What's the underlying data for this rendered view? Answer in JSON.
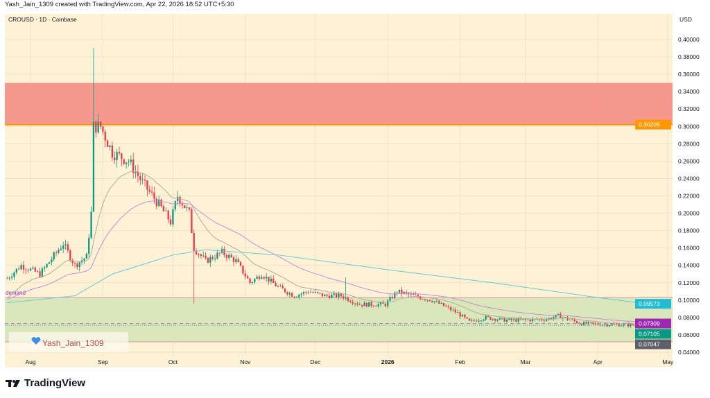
{
  "header": {
    "caption": "Yash_Jain_1309 created with TradingView.com, Apr 22, 2026 18:52 UTC+5:30",
    "symbol": "CROUSD · 1D · Coinbase",
    "currency": "USD"
  },
  "watermark": {
    "text": "Yash_Jain_1309",
    "icon": "heart-icon"
  },
  "logo": {
    "text": "TradingView"
  },
  "chart_data": {
    "type": "candlestick",
    "title": "CROUSD · 1D · Coinbase",
    "ylim": [
      0.04,
      0.4
    ],
    "yticks": [
      "0.04000",
      "0.06000",
      "0.08000",
      "0.10000",
      "0.12000",
      "0.14000",
      "0.16000",
      "0.18000",
      "0.20000",
      "0.22000",
      "0.24000",
      "0.26000",
      "0.28000",
      "0.30000",
      "0.32000",
      "0.34000",
      "0.36000",
      "0.38000",
      "0.40000"
    ],
    "xticks": [
      {
        "label": "Aug",
        "date": "2025-08-01"
      },
      {
        "label": "Sep",
        "date": "2025-09-01"
      },
      {
        "label": "Oct",
        "date": "2025-10-01"
      },
      {
        "label": "Nov",
        "date": "2025-11-01"
      },
      {
        "label": "Dec",
        "date": "2025-12-01"
      },
      {
        "label": "2026",
        "date": "2026-01-01"
      },
      {
        "label": "Feb",
        "date": "2026-02-01"
      },
      {
        "label": "Mar",
        "date": "2026-03-01"
      },
      {
        "label": "Apr",
        "date": "2026-04-01"
      },
      {
        "label": "May",
        "date": "2026-05-01"
      }
    ],
    "xlim": [
      "2025-07-21",
      "2026-05-03"
    ],
    "close_path": [
      [
        "2025-07-22",
        0.125
      ],
      [
        "2025-07-28",
        0.14
      ],
      [
        "2025-08-05",
        0.13
      ],
      [
        "2025-08-15",
        0.165
      ],
      [
        "2025-08-20",
        0.14
      ],
      [
        "2025-08-25",
        0.15
      ],
      [
        "2025-08-27",
        0.2
      ],
      [
        "2025-08-28",
        0.3
      ],
      [
        "2025-08-31",
        0.3
      ],
      [
        "2025-09-05",
        0.27
      ],
      [
        "2025-09-12",
        0.26
      ],
      [
        "2025-09-18",
        0.235
      ],
      [
        "2025-09-25",
        0.21
      ],
      [
        "2025-09-30",
        0.19
      ],
      [
        "2025-10-03",
        0.22
      ],
      [
        "2025-10-08",
        0.2
      ],
      [
        "2025-10-10",
        0.16
      ],
      [
        "2025-10-15",
        0.145
      ],
      [
        "2025-10-22",
        0.155
      ],
      [
        "2025-10-28",
        0.145
      ],
      [
        "2025-11-03",
        0.12
      ],
      [
        "2025-11-08",
        0.13
      ],
      [
        "2025-11-15",
        0.115
      ],
      [
        "2025-11-22",
        0.105
      ],
      [
        "2025-11-28",
        0.11
      ],
      [
        "2025-12-05",
        0.105
      ],
      [
        "2025-12-12",
        0.105
      ],
      [
        "2025-12-20",
        0.095
      ],
      [
        "2025-12-31",
        0.095
      ],
      [
        "2026-01-05",
        0.11
      ],
      [
        "2026-01-12",
        0.105
      ],
      [
        "2026-01-20",
        0.1
      ],
      [
        "2026-01-31",
        0.085
      ],
      [
        "2026-02-05",
        0.075
      ],
      [
        "2026-02-12",
        0.08
      ],
      [
        "2026-02-20",
        0.077
      ],
      [
        "2026-03-01",
        0.077
      ],
      [
        "2026-03-10",
        0.078
      ],
      [
        "2026-03-15",
        0.082
      ],
      [
        "2026-03-25",
        0.073
      ],
      [
        "2026-04-05",
        0.072
      ],
      [
        "2026-04-22",
        0.0711
      ]
    ],
    "wick_extremes": [
      [
        "2025-08-28",
        "high",
        0.39
      ],
      [
        "2025-10-10",
        "low",
        0.096
      ],
      [
        "2025-12-14",
        "high",
        0.126
      ]
    ],
    "moving_averages": [
      {
        "color": "#b2aca0",
        "ema_period": 20
      },
      {
        "color": "#c98bd6",
        "ema_period": 50
      },
      {
        "color": "#62cad4",
        "points": [
          [
            "2025-07-22",
            0.097
          ],
          [
            "2025-08-20",
            0.105
          ],
          [
            "2025-09-05",
            0.13
          ],
          [
            "2025-10-01",
            0.152
          ],
          [
            "2025-10-15",
            0.158
          ],
          [
            "2025-11-15",
            0.152
          ],
          [
            "2026-01-01",
            0.135
          ],
          [
            "2026-02-15",
            0.12
          ],
          [
            "2026-04-01",
            0.103
          ],
          [
            "2026-04-22",
            0.0957
          ]
        ]
      }
    ],
    "zones": [
      {
        "type": "supply",
        "from": 0.302,
        "to": 0.35,
        "color": "#f7928b"
      },
      {
        "type": "demand",
        "label": "demand",
        "from": 0.052,
        "to": 0.103,
        "color": "#d6e5b8"
      }
    ],
    "hlines": [
      {
        "value": 0.07309,
        "color": "#c27bd1",
        "style": "dashed"
      },
      {
        "value": 0.07105,
        "color": "#4fa88e",
        "style": "dotted"
      }
    ],
    "price_labels": [
      {
        "text": "0.30205",
        "value": 0.30205,
        "color": "#ff9800"
      },
      {
        "text": "0.09573",
        "value": 0.09573,
        "color": "#22bcd4"
      },
      {
        "text": "0.07309",
        "value": 0.07309,
        "color": "#9c27b0"
      },
      {
        "text": "0.07105",
        "value": 0.07105,
        "color": "#089981"
      },
      {
        "text": "0.07047",
        "value": 0.07047,
        "color": "#5d606b"
      }
    ],
    "colors": {
      "up": "#089981",
      "down": "#f23645",
      "background": "#fdf1d6"
    }
  }
}
